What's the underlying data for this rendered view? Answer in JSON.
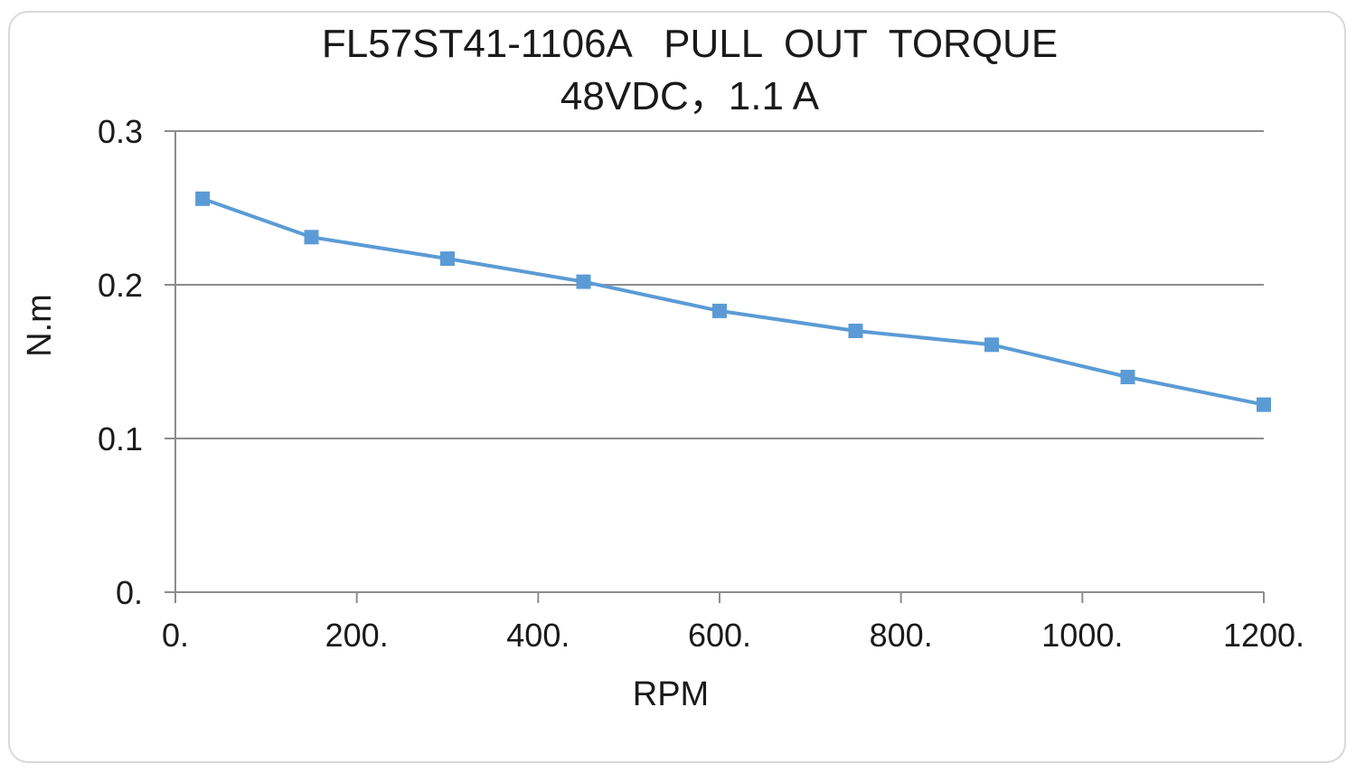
{
  "chart_data": {
    "type": "line",
    "title": "FL57ST41-1106A   PULL  OUT  TORQUE",
    "subtitle": "48VDC，1.1 A",
    "xlabel": "RPM",
    "ylabel": "N.m",
    "xlim": [
      0,
      1200
    ],
    "ylim": [
      0,
      0.3
    ],
    "x_ticks": [
      0,
      200,
      400,
      600,
      800,
      1000,
      1200
    ],
    "x_tick_labels": [
      "0.",
      "200.",
      "400.",
      "600.",
      "800.",
      "1000.",
      "1200."
    ],
    "y_ticks": [
      0,
      0.1,
      0.2,
      0.3
    ],
    "y_tick_labels": [
      "0.",
      "0.1",
      "0.2",
      "0.3"
    ],
    "grid": true,
    "legend": "none",
    "series": [
      {
        "x": [
          30,
          150,
          300,
          450,
          600,
          750,
          900,
          1050,
          1200
        ],
        "y": [
          0.256,
          0.231,
          0.217,
          0.202,
          0.183,
          0.17,
          0.161,
          0.14,
          0.122
        ],
        "color": "#5b9bd5",
        "marker": "square"
      }
    ]
  }
}
